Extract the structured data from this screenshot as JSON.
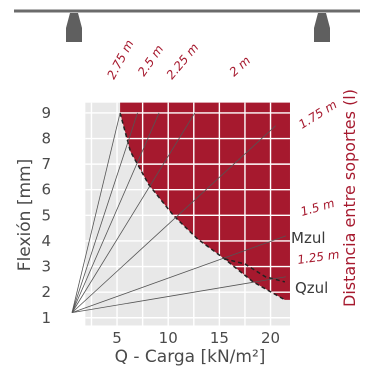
{
  "chart_data": {
    "type": "line",
    "xlabel": "Q - Carga [kN/m²]",
    "ylabel": "Flexión [mm]",
    "side_label": "Distancia entre soportes (l)",
    "x_ticks": [
      "5",
      "10",
      "15",
      "20"
    ],
    "y_ticks": [
      "1",
      "2",
      "3",
      "4",
      "5",
      "6",
      "7",
      "8",
      "9"
    ],
    "xlim": [
      0.5,
      22
    ],
    "ylim": [
      0.6,
      9.7
    ],
    "grid": true,
    "origin": [
      0.6,
      1.2
    ],
    "spans": [
      {
        "label": "2.75 m",
        "end": [
          5.3,
          9.0
        ]
      },
      {
        "label": "2.5 m",
        "end": [
          7.0,
          9.0
        ]
      },
      {
        "label": "2.25 m",
        "end": [
          9.1,
          9.0
        ]
      },
      {
        "label": "2 m",
        "end": [
          12.6,
          9.0
        ]
      },
      {
        "label": "1.75 m",
        "end": [
          20.5,
          8.5
        ]
      },
      {
        "label": "1.5 m",
        "end": [
          21.5,
          4.2
        ]
      },
      {
        "label": "1.25 m",
        "end": [
          21.5,
          2.6
        ]
      }
    ],
    "annotations": [
      "Mzul",
      "Qzul"
    ],
    "qzul_curve": [
      [
        5.3,
        9.0
      ],
      [
        6.3,
        7.5
      ],
      [
        8.1,
        6.2
      ],
      [
        10.5,
        5.0
      ],
      [
        12.8,
        4.1
      ],
      [
        15.5,
        3.3
      ],
      [
        18.3,
        2.4
      ],
      [
        21.4,
        1.7
      ]
    ],
    "mzul_curve": [
      [
        15.5,
        3.3
      ],
      [
        17.5,
        3.1
      ],
      [
        19.5,
        2.6
      ],
      [
        21.4,
        2.4
      ]
    ],
    "colors": {
      "region": "#a6192e",
      "grid_bg": "#e8e8e8",
      "beam": "#6b6b6b",
      "text": "#4a4a4a"
    }
  }
}
